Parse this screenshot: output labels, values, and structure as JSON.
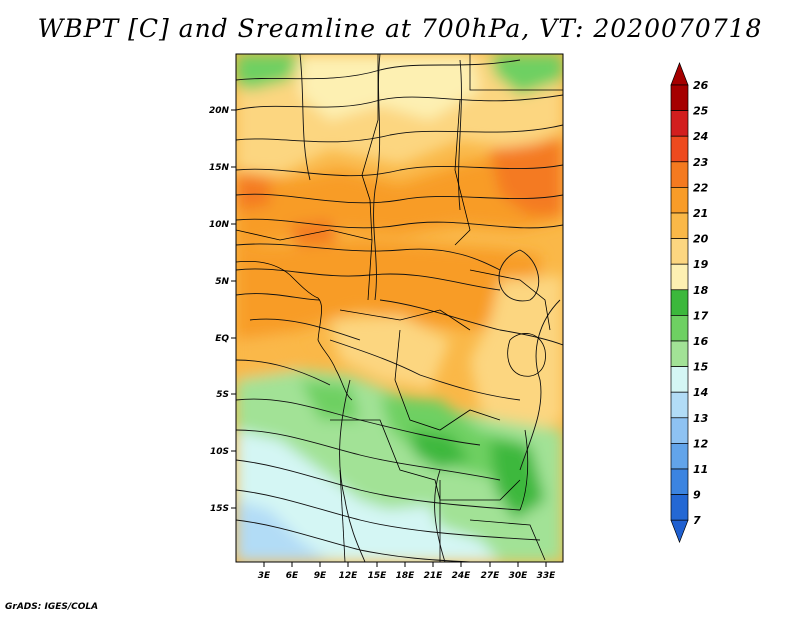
{
  "title": "WBPT [C] and Sreamline at 700hPa, VT: 2020070718",
  "credit": "GrADS: IGES/COLA",
  "map": {
    "lat_labels": [
      "20N",
      "15N",
      "10N",
      "5N",
      "EQ",
      "5S",
      "10S",
      "15S"
    ],
    "lon_labels": [
      "3E",
      "6E",
      "9E",
      "12E",
      "15E",
      "18E",
      "21E",
      "24E",
      "27E",
      "30E",
      "33E"
    ]
  },
  "colorbar": {
    "labels": [
      "26",
      "25",
      "24",
      "23",
      "22",
      "21",
      "20",
      "19",
      "18",
      "17",
      "16",
      "15",
      "14",
      "13",
      "12",
      "11",
      "9",
      "7"
    ],
    "colors": [
      "#a50000",
      "#d21e1e",
      "#ee4a1e",
      "#f47a20",
      "#f89c28",
      "#fab848",
      "#fcd680",
      "#fdf0b2",
      "#3cb83c",
      "#6ed062",
      "#a2e296",
      "#d4f6f4",
      "#b2dcf6",
      "#8ec2f2",
      "#62a4ea",
      "#3c84e0",
      "#2468d4"
    ],
    "top_color": "#a50000",
    "bottom_color": "#2060d0"
  }
}
